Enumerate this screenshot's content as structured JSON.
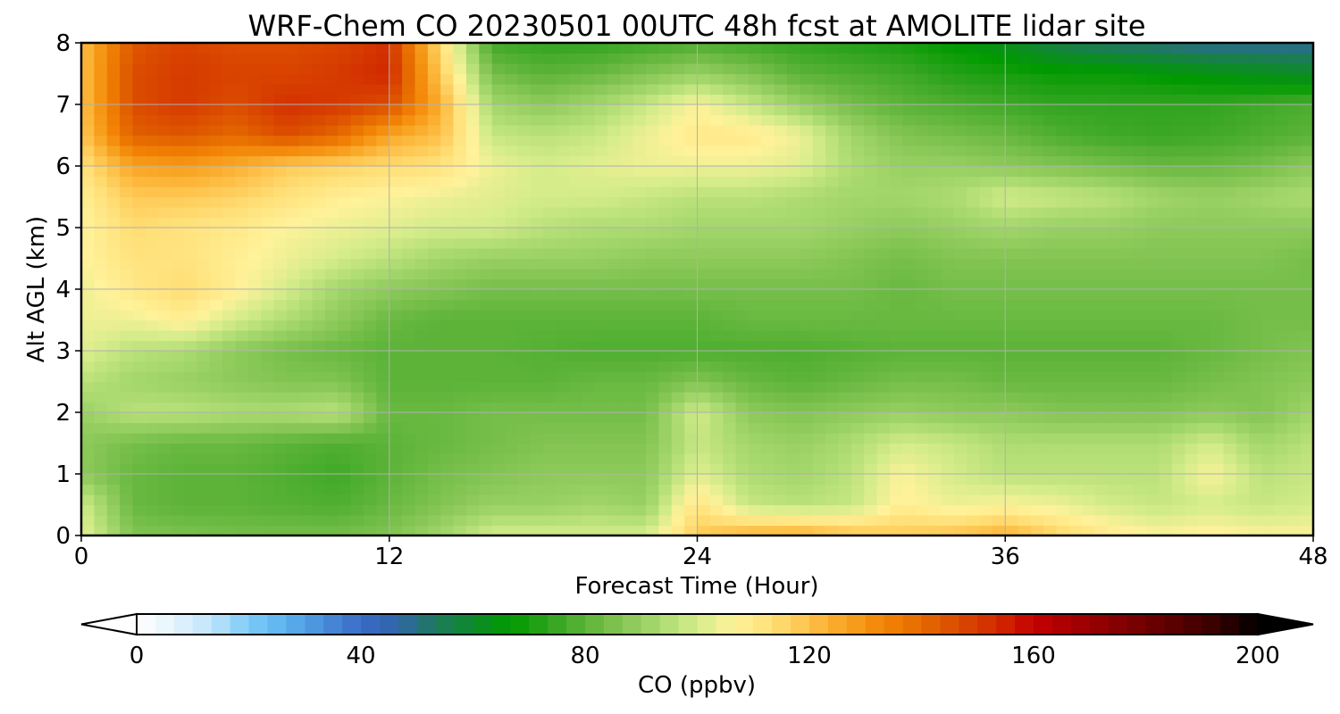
{
  "chart_data": {
    "type": "heatmap",
    "title": "WRF-Chem CO  20230501 00UTC 48h fcst at AMOLITE lidar site",
    "xlabel": "Forecast Time (Hour)",
    "ylabel": "Alt AGL (km)",
    "xlim": [
      0,
      48
    ],
    "ylim": [
      0,
      8
    ],
    "xticks": [
      0,
      12,
      24,
      36,
      48
    ],
    "yticks": [
      0,
      1,
      2,
      3,
      4,
      5,
      6,
      7,
      8
    ],
    "grid": true,
    "x": [
      0,
      2,
      4,
      6,
      8,
      10,
      12,
      14,
      16,
      18,
      20,
      22,
      24,
      26,
      28,
      30,
      32,
      34,
      36,
      38,
      40,
      42,
      44,
      46,
      48
    ],
    "y": [
      0,
      0.5,
      1,
      1.5,
      2,
      2.5,
      3,
      3.5,
      4,
      4.5,
      5,
      5.5,
      6,
      6.5,
      7,
      7.5,
      8
    ],
    "values": [
      [
        103,
        86,
        85,
        84,
        84,
        84,
        86,
        92,
        100,
        100,
        100,
        100,
        118,
        124,
        125,
        120,
        118,
        120,
        124,
        116,
        110,
        106,
        108,
        106,
        106
      ],
      [
        100,
        82,
        80,
        80,
        79,
        78,
        82,
        86,
        90,
        90,
        92,
        90,
        112,
        98,
        96,
        98,
        108,
        104,
        106,
        104,
        100,
        98,
        100,
        98,
        100
      ],
      [
        88,
        82,
        80,
        80,
        78,
        76,
        80,
        84,
        86,
        88,
        88,
        88,
        102,
        94,
        92,
        96,
        106,
        100,
        96,
        96,
        96,
        96,
        106,
        96,
        98
      ],
      [
        88,
        84,
        82,
        82,
        80,
        78,
        80,
        82,
        84,
        86,
        86,
        86,
        98,
        92,
        90,
        94,
        100,
        98,
        94,
        94,
        94,
        94,
        100,
        92,
        96
      ],
      [
        90,
        96,
        96,
        94,
        94,
        96,
        82,
        82,
        84,
        84,
        84,
        84,
        100,
        88,
        86,
        88,
        90,
        88,
        88,
        86,
        86,
        86,
        88,
        86,
        92
      ],
      [
        96,
        92,
        90,
        88,
        86,
        86,
        80,
        80,
        80,
        80,
        82,
        82,
        86,
        82,
        80,
        82,
        84,
        84,
        82,
        82,
        82,
        82,
        84,
        86,
        88
      ],
      [
        102,
        96,
        94,
        88,
        84,
        82,
        80,
        80,
        80,
        79,
        78,
        78,
        78,
        78,
        78,
        79,
        80,
        80,
        80,
        80,
        80,
        80,
        82,
        84,
        86
      ],
      [
        104,
        104,
        108,
        100,
        94,
        88,
        82,
        80,
        80,
        80,
        80,
        80,
        80,
        82,
        82,
        82,
        82,
        82,
        82,
        82,
        82,
        82,
        82,
        84,
        84
      ],
      [
        104,
        110,
        114,
        108,
        100,
        92,
        88,
        86,
        84,
        84,
        84,
        84,
        84,
        84,
        84,
        84,
        82,
        84,
        84,
        84,
        84,
        84,
        84,
        84,
        84
      ],
      [
        106,
        112,
        112,
        108,
        104,
        100,
        96,
        92,
        90,
        90,
        90,
        88,
        88,
        88,
        88,
        86,
        84,
        86,
        86,
        86,
        86,
        86,
        86,
        86,
        84
      ],
      [
        106,
        114,
        112,
        110,
        106,
        104,
        102,
        100,
        100,
        96,
        94,
        94,
        92,
        92,
        92,
        90,
        88,
        90,
        92,
        90,
        90,
        88,
        88,
        88,
        88
      ],
      [
        108,
        118,
        118,
        116,
        112,
        108,
        106,
        104,
        102,
        100,
        100,
        98,
        96,
        96,
        94,
        92,
        92,
        94,
        100,
        98,
        96,
        92,
        90,
        92,
        94
      ],
      [
        112,
        126,
        128,
        124,
        118,
        116,
        114,
        112,
        104,
        100,
        102,
        104,
        104,
        104,
        102,
        94,
        90,
        90,
        88,
        86,
        84,
        82,
        82,
        84,
        88
      ],
      [
        118,
        142,
        144,
        140,
        146,
        140,
        126,
        120,
        98,
        96,
        98,
        104,
        110,
        110,
        104,
        92,
        86,
        84,
        82,
        78,
        76,
        75,
        76,
        78,
        80
      ],
      [
        120,
        146,
        150,
        146,
        152,
        150,
        146,
        124,
        92,
        88,
        92,
        98,
        106,
        98,
        90,
        84,
        80,
        78,
        76,
        74,
        74,
        74,
        74,
        76,
        78
      ],
      [
        120,
        146,
        150,
        148,
        148,
        150,
        154,
        118,
        84,
        80,
        82,
        86,
        90,
        86,
        80,
        78,
        76,
        72,
        70,
        68,
        68,
        66,
        64,
        62,
        60
      ],
      [
        120,
        144,
        148,
        146,
        146,
        148,
        152,
        114,
        76,
        74,
        74,
        76,
        78,
        76,
        74,
        72,
        70,
        66,
        62,
        56,
        52,
        50,
        48,
        48,
        48
      ]
    ]
  },
  "colorbar": {
    "label": "CO  (ppbv)",
    "min": 0,
    "max": 200,
    "ticks": [
      "0",
      "40",
      "80",
      "120",
      "160",
      "200"
    ],
    "extend": "both",
    "colors": [
      "#ffffff",
      "#e6f3fc",
      "#bfe4fb",
      "#7dcbf7",
      "#5ab1ee",
      "#4a8ed9",
      "#3a6bc7",
      "#2f66a8",
      "#1e7a5c",
      "#0e8a2a",
      "#009a00",
      "#2ea31d",
      "#5cb338",
      "#86c655",
      "#aada70",
      "#d4ec8a",
      "#fff29a",
      "#ffdf77",
      "#fec149",
      "#f8a220",
      "#f38406",
      "#e56a00",
      "#da4a00",
      "#d22a00",
      "#c40000",
      "#a80000",
      "#8c0000",
      "#700000",
      "#520000",
      "#330000",
      "#000000"
    ]
  }
}
